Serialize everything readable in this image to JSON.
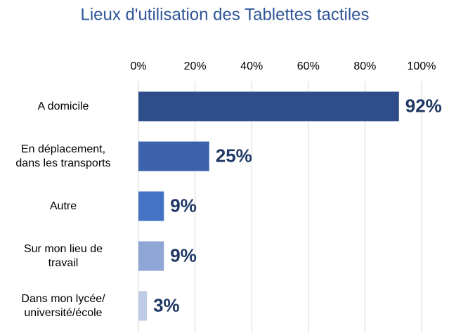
{
  "chart_data": {
    "type": "bar",
    "orientation": "horizontal",
    "title": "Lieux d'utilisation des Tablettes tactiles",
    "categories": [
      "A domicile",
      "En déplacement,\ndans les transports",
      "Autre",
      "Sur mon lieu de\ntravail",
      "Dans mon lycée/\nuniversité/école"
    ],
    "values": [
      92,
      25,
      9,
      9,
      3
    ],
    "value_labels": [
      "92%",
      "25%",
      "9%",
      "9%",
      "3%"
    ],
    "colors": [
      "#2e4d8a",
      "#3d62ad",
      "#4472c4",
      "#8fa5d5",
      "#bfcbe6"
    ],
    "xlim": [
      0,
      100
    ],
    "xticks": [
      {
        "value": 0,
        "label": "0%"
      },
      {
        "value": 20,
        "label": "20%"
      },
      {
        "value": 40,
        "label": "40%"
      },
      {
        "value": 60,
        "label": "60%"
      },
      {
        "value": 80,
        "label": "80%"
      },
      {
        "value": 100,
        "label": "100%"
      }
    ],
    "grid": true
  }
}
